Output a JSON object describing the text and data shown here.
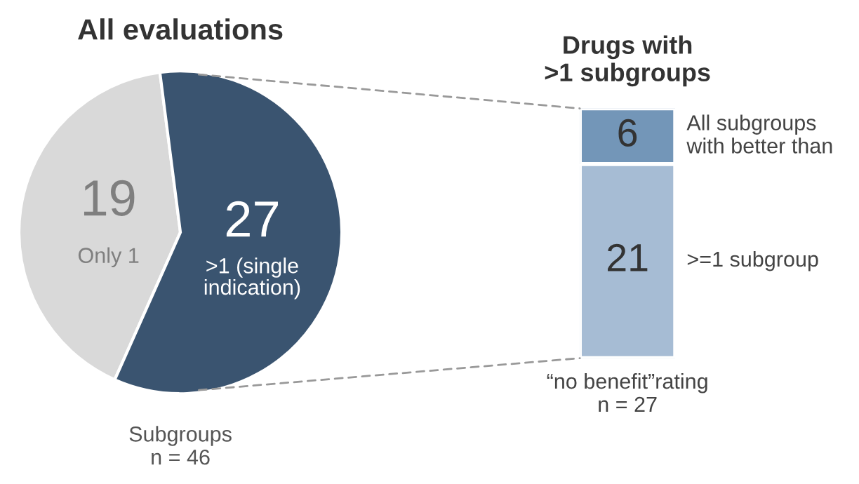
{
  "chart_data": [
    {
      "type": "pie",
      "title": "All evaluations",
      "categories": [
        "Only 1",
        ">1 (single indication)"
      ],
      "values": [
        19,
        27
      ],
      "colors": [
        "#d9d9d9",
        "#3a5470"
      ],
      "data_labels": true,
      "annotations": [
        "Subgroups\nn = 46"
      ]
    },
    {
      "type": "bar",
      "stacked": true,
      "title": "Drugs with\n>1 subgroups",
      "categories": [
        null
      ],
      "data_labels": true,
      "series": [
        {
          "name": ">=1 subgroup",
          "color": "#a6bcd4",
          "values": [
            21
          ]
        },
        {
          "name": "All subgroups\nwith better than",
          "color": "#7396b8",
          "values": [
            6
          ]
        }
      ],
      "annotations": [
        "“no benefit”rating\nn = 27"
      ]
    }
  ]
}
